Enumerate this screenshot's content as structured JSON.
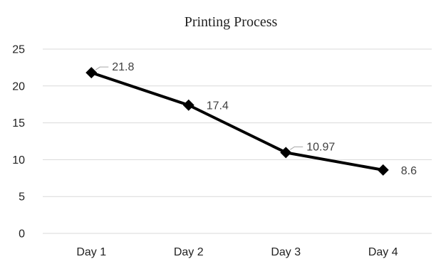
{
  "chart_data": {
    "type": "line",
    "title": "Printing Process",
    "categories": [
      "Day 1",
      "Day 2",
      "Day 3",
      "Day 4"
    ],
    "series": [
      {
        "values": [
          21.8,
          17.4,
          10.97,
          8.6
        ],
        "data_labels": [
          "21.8",
          "17.4",
          "10.97",
          "8.6"
        ]
      }
    ],
    "ylim": [
      0,
      25
    ],
    "yticks": [
      0,
      5,
      10,
      15,
      20,
      25
    ],
    "grid": true,
    "legend": "none",
    "marker": "diamond",
    "line_color": "#000000"
  }
}
